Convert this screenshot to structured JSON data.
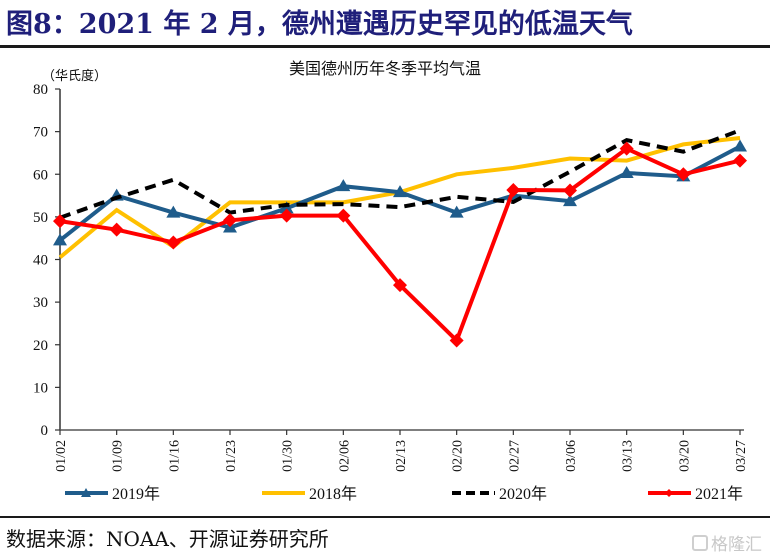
{
  "figure": {
    "title": "图8：2021 年 2 月，德州遭遇历史罕见的低温天气",
    "source": "数据来源：NOAA、开源证券研究所",
    "watermark": "格隆汇"
  },
  "chart_data": {
    "type": "line",
    "title": "美国德州历年冬季平均气温",
    "xlabel": "",
    "ylabel": "（华氏度）",
    "ylim": [
      0,
      80
    ],
    "yticks": [
      0,
      10,
      20,
      30,
      40,
      50,
      60,
      70,
      80
    ],
    "grid": false,
    "legend_position": "bottom",
    "categories": [
      "01/02",
      "01/09",
      "01/16",
      "01/23",
      "01/30",
      "02/06",
      "02/13",
      "02/20",
      "02/27",
      "03/06",
      "03/13",
      "03/20",
      "03/27"
    ],
    "series": [
      {
        "name": "2019年",
        "color": "#1f5c8b",
        "style": "solid",
        "marker": "triangle",
        "values": [
          44.5,
          55.0,
          51.0,
          47.5,
          52.0,
          57.2,
          55.8,
          51.0,
          55.0,
          53.7,
          60.3,
          59.5,
          66.5
        ]
      },
      {
        "name": "2018年",
        "color": "#ffc000",
        "style": "solid",
        "marker": "none",
        "values": [
          40.5,
          51.6,
          43.0,
          53.4,
          53.4,
          53.4,
          55.8,
          60.0,
          61.5,
          63.7,
          63.2,
          67.0,
          68.5
        ]
      },
      {
        "name": "2020年",
        "color": "#000000",
        "style": "dashed",
        "marker": "none",
        "values": [
          49.8,
          54.5,
          58.7,
          51.0,
          52.8,
          53.0,
          52.3,
          54.7,
          53.5,
          60.6,
          68.0,
          65.3,
          70.3
        ]
      },
      {
        "name": "2021年",
        "color": "#ff0000",
        "style": "solid",
        "marker": "diamond",
        "values": [
          49.0,
          47.0,
          44.0,
          49.2,
          50.3,
          50.3,
          34.0,
          21.0,
          56.3,
          56.2,
          66.0,
          60.0,
          63.2
        ]
      }
    ]
  }
}
